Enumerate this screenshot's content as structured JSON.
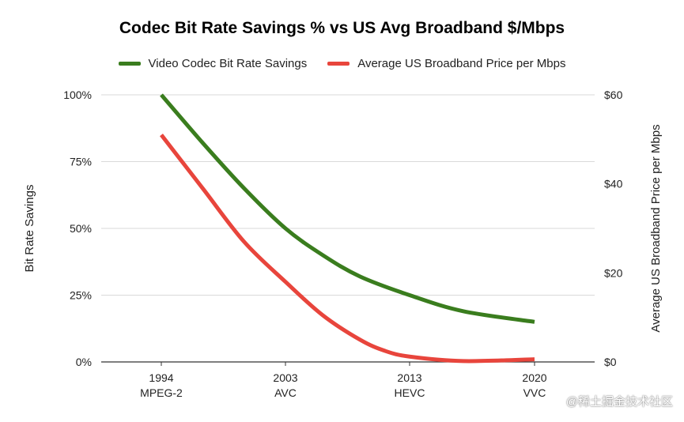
{
  "chart_data": {
    "type": "line",
    "title": "Codec Bit Rate Savings % vs US Avg Broadband $/Mbps",
    "categories": [
      "1994",
      "2003",
      "2013",
      "2020"
    ],
    "category_sublabels": [
      "MPEG-2",
      "AVC",
      "HEVC",
      "VVC"
    ],
    "ylabel": "Bit Rate Savings",
    "y2label": "Average US Broadband Price per Mbps",
    "ylim": [
      0,
      100
    ],
    "y2lim": [
      0,
      60
    ],
    "y_ticks": [
      "0%",
      "25%",
      "50%",
      "75%",
      "100%"
    ],
    "y2_ticks": [
      "$0",
      "$20",
      "$40",
      "$60"
    ],
    "grid": true,
    "legend_position": "top",
    "series": [
      {
        "name": "Video Codec Bit Rate Savings",
        "axis": "left",
        "color": "#3a7d1e",
        "x": [
          1994,
          1997,
          2000,
          2003,
          2006,
          2009,
          2013,
          2016,
          2020
        ],
        "values": [
          100,
          82,
          65,
          50,
          40,
          32,
          25,
          19,
          15
        ]
      },
      {
        "name": "Average US Broadband Price per Mbps",
        "axis": "right",
        "color": "#e8453c",
        "x": [
          1994,
          1997,
          2000,
          2003,
          2006,
          2009,
          2011,
          2013,
          2016,
          2020
        ],
        "values": [
          51,
          39,
          27,
          18,
          10.5,
          5,
          2.5,
          1.2,
          0.2,
          0.6
        ]
      }
    ]
  },
  "watermark": "@稀土掘金技术社区"
}
